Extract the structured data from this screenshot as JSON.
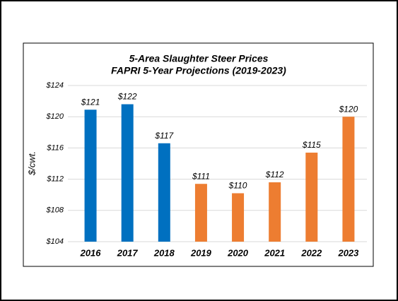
{
  "chart_data": {
    "type": "bar",
    "title": [
      "5-Area Slaughter Steer Prices",
      "FAPRI 5-Year Projections (2019-2023)"
    ],
    "y_label": "$/cwt.",
    "categories": [
      "2016",
      "2017",
      "2018",
      "2019",
      "2020",
      "2021",
      "2022",
      "2023"
    ],
    "values": [
      120.9,
      121.6,
      116.6,
      111.4,
      110.2,
      111.6,
      115.4,
      120.0
    ],
    "value_labels": [
      "$121",
      "$122",
      "$117",
      "$111",
      "$110",
      "$112",
      "$115",
      "$120"
    ],
    "colors": [
      "#0070c0",
      "#0070c0",
      "#0070c0",
      "#ed7d31",
      "#ed7d31",
      "#ed7d31",
      "#ed7d31",
      "#ed7d31"
    ],
    "ylim": [
      104,
      124
    ],
    "yticks": [
      {
        "value": 104,
        "label": "$104"
      },
      {
        "value": 108,
        "label": "$108"
      },
      {
        "value": 112,
        "label": "$112"
      },
      {
        "value": 116,
        "label": "$116"
      },
      {
        "value": 120,
        "label": "$120"
      },
      {
        "value": 124,
        "label": "$124"
      }
    ],
    "grid": true
  }
}
